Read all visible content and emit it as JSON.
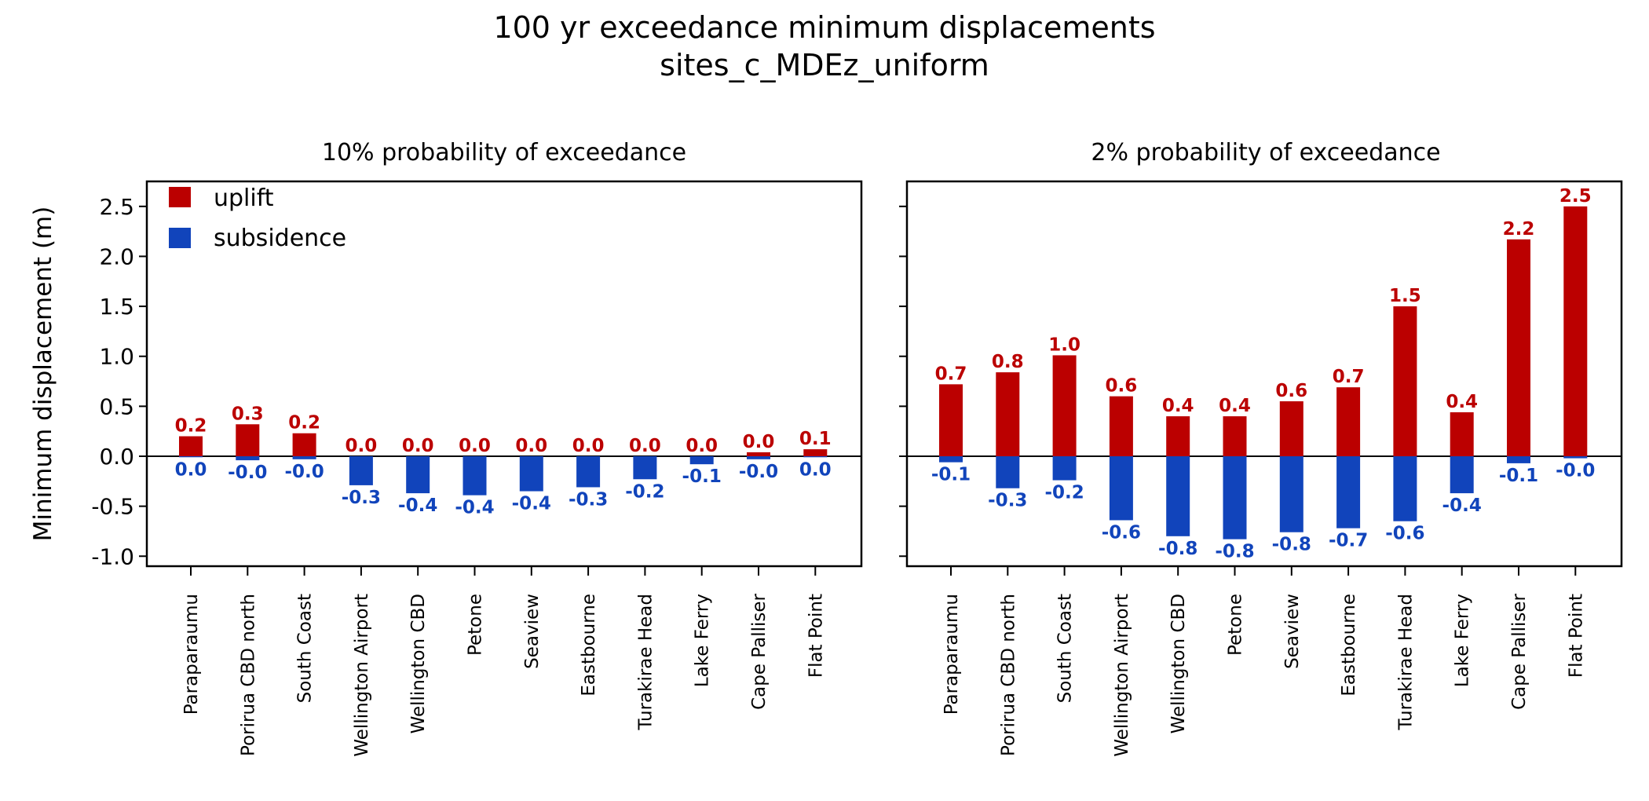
{
  "title": "100 yr exceedance minimum displacements",
  "subtitle": "sites_c_MDEz_uniform",
  "ylabel": "Minimum displacement (m)",
  "colors": {
    "uplift": "#bb0000",
    "subsidence": "#1144bb"
  },
  "legend": {
    "items": [
      "uplift",
      "subsidence"
    ],
    "placement": "top-left"
  },
  "chart_data": [
    {
      "type": "bar",
      "title": "10% probability of exceedance",
      "xlabel": "",
      "ylabel": "Minimum displacement (m)",
      "ylim": [
        -1.1,
        2.75
      ],
      "yticks": [
        "2.5",
        "2.0",
        "1.5",
        "1.0",
        "0.5",
        "0.0",
        "-0.5",
        "-1.0"
      ],
      "categories": [
        "Paraparaumu",
        "Porirua CBD north",
        "South Coast",
        "Wellington Airport",
        "Wellington CBD",
        "Petone",
        "Seaview",
        "Eastbourne",
        "Turakirae Head",
        "Lake Ferry",
        "Cape Palliser",
        "Flat Point"
      ],
      "series": [
        {
          "name": "uplift",
          "values": [
            0.2,
            0.32,
            0.23,
            0.0,
            0.0,
            0.0,
            0.0,
            0.0,
            0.0,
            0.0,
            0.04,
            0.07
          ],
          "labels": [
            "0.2",
            "0.3",
            "0.2",
            "0.0",
            "0.0",
            "0.0",
            "0.0",
            "0.0",
            "0.0",
            "0.0",
            "0.0",
            "0.1"
          ]
        },
        {
          "name": "subsidence",
          "values": [
            -0.01,
            -0.04,
            -0.03,
            -0.29,
            -0.37,
            -0.39,
            -0.35,
            -0.31,
            -0.23,
            -0.08,
            -0.03,
            -0.01
          ],
          "labels": [
            "0.0",
            "-0.0",
            "-0.0",
            "-0.3",
            "-0.4",
            "-0.4",
            "-0.4",
            "-0.3",
            "-0.2",
            "-0.1",
            "-0.0",
            "0.0"
          ]
        }
      ]
    },
    {
      "type": "bar",
      "title": "2% probability of exceedance",
      "xlabel": "",
      "ylabel": "",
      "ylim": [
        -1.1,
        2.75
      ],
      "yticks": [],
      "categories": [
        "Paraparaumu",
        "Porirua CBD north",
        "South Coast",
        "Wellington Airport",
        "Wellington CBD",
        "Petone",
        "Seaview",
        "Eastbourne",
        "Turakirae Head",
        "Lake Ferry",
        "Cape Palliser",
        "Flat Point"
      ],
      "series": [
        {
          "name": "uplift",
          "values": [
            0.72,
            0.84,
            1.01,
            0.6,
            0.4,
            0.4,
            0.55,
            0.69,
            1.5,
            0.44,
            2.17,
            2.5
          ],
          "labels": [
            "0.7",
            "0.8",
            "1.0",
            "0.6",
            "0.4",
            "0.4",
            "0.6",
            "0.7",
            "1.5",
            "0.4",
            "2.2",
            "2.5"
          ]
        },
        {
          "name": "subsidence",
          "values": [
            -0.06,
            -0.32,
            -0.24,
            -0.64,
            -0.8,
            -0.83,
            -0.76,
            -0.72,
            -0.65,
            -0.37,
            -0.07,
            -0.02
          ],
          "labels": [
            "-0.1",
            "-0.3",
            "-0.2",
            "-0.6",
            "-0.8",
            "-0.8",
            "-0.8",
            "-0.7",
            "-0.6",
            "-0.4",
            "-0.1",
            "-0.0"
          ]
        }
      ]
    }
  ]
}
